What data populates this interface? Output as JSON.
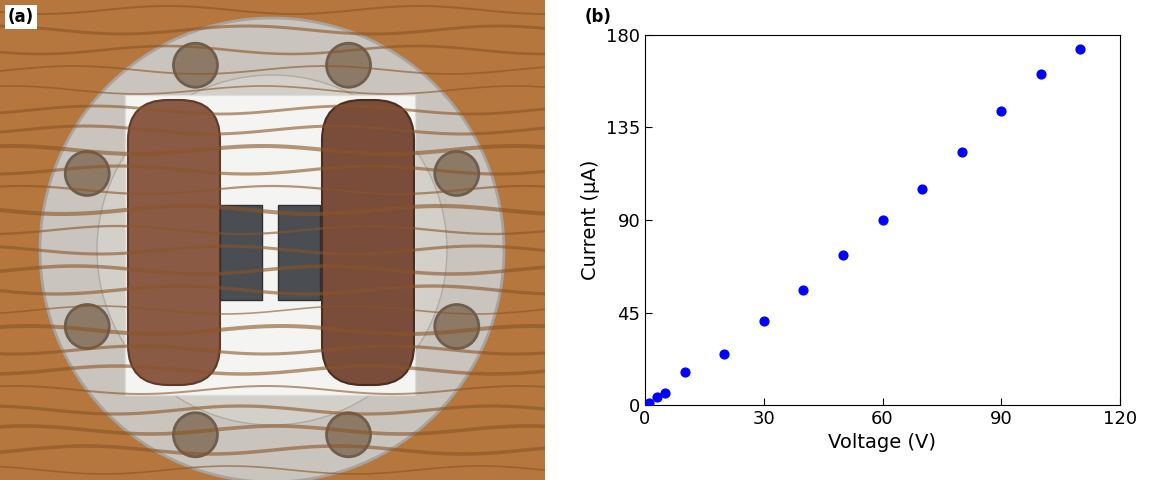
{
  "image_panel": {
    "label": "(a)"
  },
  "chart_data": {
    "panel_label": "(b)",
    "type": "scatter",
    "x_label": "Voltage (V)",
    "y_label": "Current (μA)",
    "x": [
      1,
      3,
      5,
      10,
      20,
      30,
      40,
      50,
      60,
      70,
      80,
      90,
      100,
      110
    ],
    "values": [
      1,
      4,
      6,
      16,
      25,
      41,
      56,
      73,
      90,
      105,
      123,
      143,
      161,
      173
    ],
    "color": "#0000ff",
    "marker": "o",
    "xlim": [
      0,
      120
    ],
    "xticks": [
      0,
      30,
      60,
      90,
      120
    ],
    "ylim": [
      0,
      180
    ],
    "yticks": [
      0,
      45,
      90,
      135,
      180
    ]
  }
}
